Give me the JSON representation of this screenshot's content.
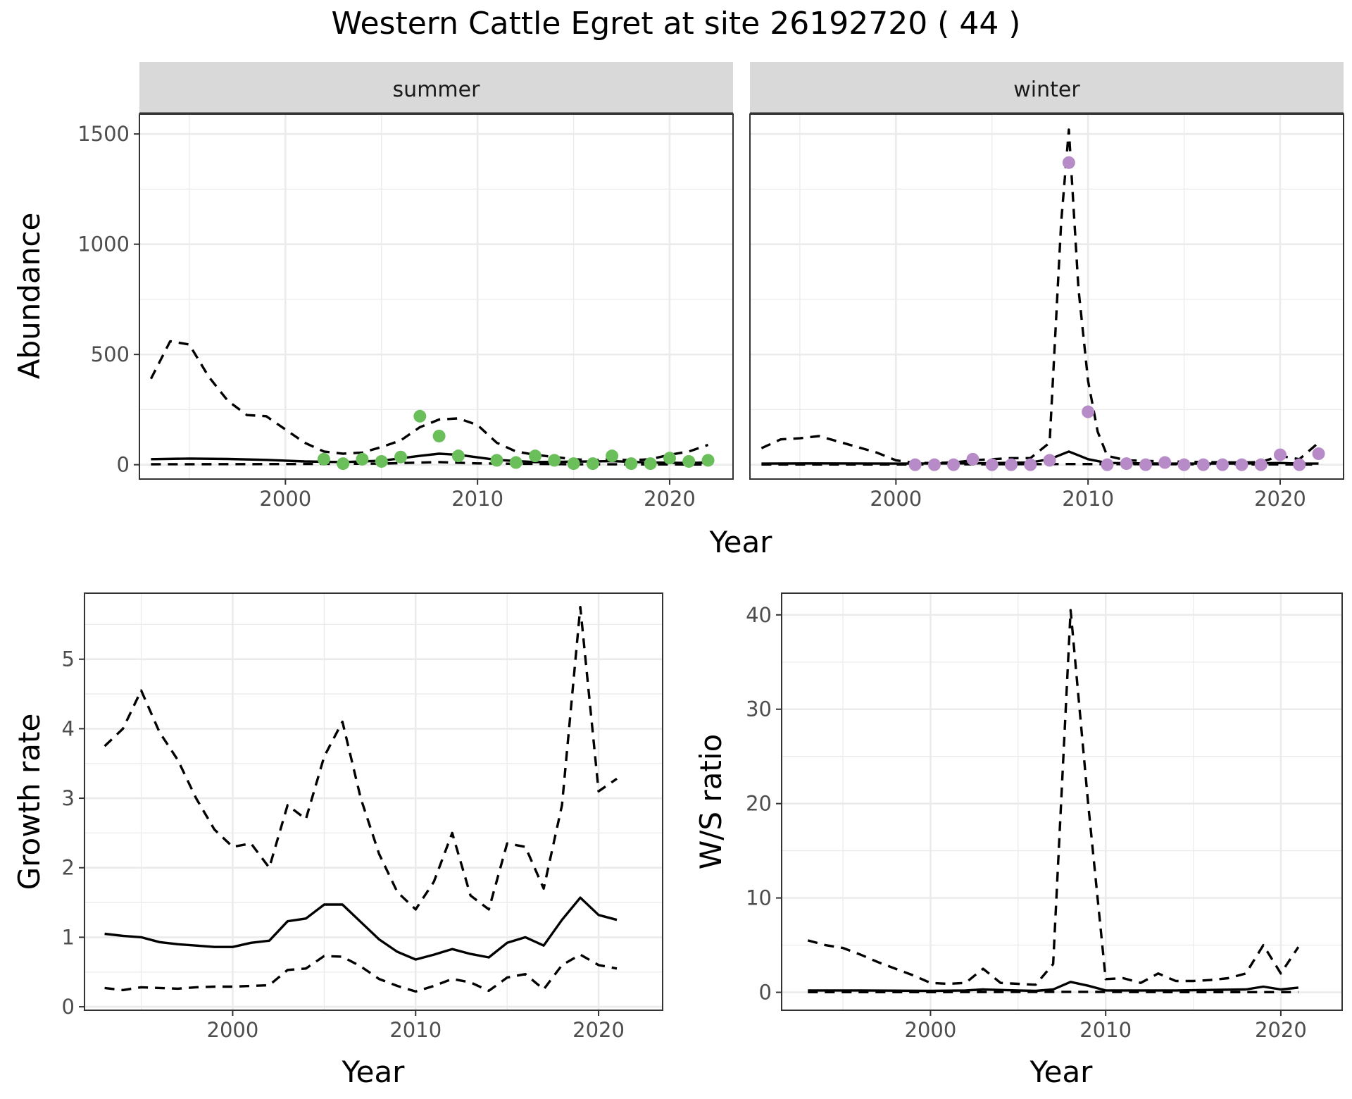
{
  "title": "Western Cattle Egret at site 26192720 ( 44 )",
  "colors": {
    "summer_points": "#6abf5b",
    "winter_points": "#b68bc8",
    "strip_bg": "#d9d9d9",
    "line": "#000000"
  },
  "chart_data": [
    {
      "id": "summer",
      "type": "line",
      "strip_label": "summer",
      "xlabel": "Year",
      "ylabel": "Abundance",
      "xlim": [
        1992.4,
        2023.3
      ],
      "ylim": [
        -65,
        1590
      ],
      "x_ticks": [
        2000,
        2010,
        2020
      ],
      "y_ticks": [
        0,
        500,
        1000,
        1500
      ],
      "series": [
        {
          "style": "solid",
          "x": [
            1993,
            1995,
            1997,
            1999,
            2001,
            2003,
            2005,
            2007,
            2008,
            2009,
            2011,
            2013,
            2015,
            2017,
            2019,
            2021,
            2022
          ],
          "y": [
            25,
            28,
            26,
            22,
            15,
            12,
            18,
            40,
            50,
            45,
            22,
            12,
            14,
            16,
            10,
            8,
            10
          ]
        },
        {
          "style": "dashed",
          "x": [
            1993,
            1994,
            1995,
            1996,
            1997,
            1998,
            1999,
            2000,
            2001,
            2002,
            2003,
            2004,
            2005,
            2006,
            2007,
            2008,
            2009,
            2010,
            2011,
            2012,
            2013,
            2014,
            2015,
            2016,
            2017,
            2018,
            2019,
            2020,
            2021,
            2022
          ],
          "y": [
            390,
            560,
            545,
            400,
            290,
            225,
            220,
            160,
            100,
            60,
            50,
            55,
            80,
            110,
            170,
            205,
            210,
            180,
            100,
            60,
            45,
            35,
            25,
            20,
            25,
            20,
            25,
            45,
            60,
            90
          ]
        },
        {
          "style": "dashed",
          "x": [
            1993,
            2000,
            2005,
            2008,
            2010,
            2015,
            2022
          ],
          "y": [
            2,
            3,
            5,
            12,
            6,
            2,
            1
          ]
        }
      ],
      "points": {
        "x": [
          2002,
          2003,
          2004,
          2005,
          2006,
          2007,
          2008,
          2009,
          2011,
          2012,
          2013,
          2014,
          2015,
          2016,
          2017,
          2018,
          2019,
          2020,
          2021,
          2022
        ],
        "y": [
          25,
          5,
          25,
          15,
          35,
          220,
          130,
          40,
          20,
          10,
          40,
          20,
          5,
          5,
          40,
          5,
          5,
          30,
          15,
          20
        ]
      }
    },
    {
      "id": "winter",
      "type": "line",
      "strip_label": "winter",
      "xlabel": "Year",
      "ylabel": "",
      "xlim": [
        1992.4,
        2023.3
      ],
      "ylim": [
        -65,
        1590
      ],
      "x_ticks": [
        2000,
        2010,
        2020
      ],
      "y_ticks": [
        0,
        500,
        1000,
        1500
      ],
      "series": [
        {
          "style": "solid",
          "x": [
            1993,
            1996,
            2000,
            2004,
            2007,
            2008,
            2009,
            2010,
            2011,
            2014,
            2018,
            2020,
            2021,
            2022
          ],
          "y": [
            5,
            6,
            5,
            6,
            10,
            25,
            60,
            25,
            8,
            5,
            5,
            8,
            5,
            5
          ]
        },
        {
          "style": "dashed",
          "x": [
            1993,
            1994,
            1995,
            1996,
            1997,
            1998,
            1999,
            2000,
            2001,
            2002,
            2003,
            2004,
            2005,
            2006,
            2007,
            2008,
            2008.6,
            2009,
            2009.5,
            2010,
            2010.5,
            2011,
            2012,
            2014,
            2016,
            2018,
            2019,
            2020,
            2021,
            2022
          ],
          "y": [
            75,
            115,
            120,
            130,
            105,
            80,
            55,
            20,
            8,
            8,
            10,
            20,
            25,
            30,
            30,
            100,
            1100,
            1520,
            800,
            380,
            150,
            40,
            20,
            15,
            12,
            10,
            12,
            40,
            25,
            100
          ]
        },
        {
          "style": "dashed",
          "x": [
            1993,
            2000,
            2009,
            2022
          ],
          "y": [
            1,
            1,
            3,
            1
          ]
        }
      ],
      "points": {
        "x": [
          2001,
          2002,
          2003,
          2004,
          2005,
          2006,
          2007,
          2008,
          2009,
          2010,
          2011,
          2012,
          2013,
          2014,
          2015,
          2016,
          2017,
          2018,
          2019,
          2020,
          2021,
          2022
        ],
        "y": [
          0,
          0,
          0,
          25,
          0,
          0,
          0,
          20,
          1370,
          240,
          0,
          5,
          0,
          10,
          0,
          0,
          0,
          0,
          0,
          45,
          0,
          50
        ]
      }
    },
    {
      "id": "growth",
      "type": "line",
      "xlabel": "Year",
      "ylabel": "Growth rate",
      "xlim": [
        1991.9,
        2023.5
      ],
      "ylim": [
        -0.05,
        5.95
      ],
      "x_ticks": [
        2000,
        2010,
        2020
      ],
      "y_ticks": [
        0,
        1,
        2,
        3,
        4,
        5
      ],
      "series": [
        {
          "style": "solid",
          "x": [
            1993,
            1994,
            1995,
            1996,
            1997,
            1998,
            1999,
            2000,
            2001,
            2002,
            2003,
            2004,
            2005,
            2006,
            2007,
            2008,
            2009,
            2010,
            2011,
            2012,
            2013,
            2014,
            2015,
            2016,
            2017,
            2018,
            2019,
            2020,
            2021
          ],
          "y": [
            1.05,
            1.02,
            1.0,
            0.93,
            0.9,
            0.88,
            0.86,
            0.86,
            0.92,
            0.95,
            1.23,
            1.27,
            1.47,
            1.47,
            1.22,
            0.97,
            0.79,
            0.68,
            0.75,
            0.83,
            0.76,
            0.71,
            0.92,
            1.0,
            0.88,
            1.25,
            1.57,
            1.32,
            1.25
          ]
        },
        {
          "style": "dashed",
          "x": [
            1993,
            1994,
            1995,
            1996,
            1997,
            1998,
            1999,
            2000,
            2001,
            2002,
            2003,
            2004,
            2005,
            2006,
            2007,
            2008,
            2009,
            2010,
            2011,
            2012,
            2013,
            2014,
            2015,
            2016,
            2017,
            2018,
            2019,
            2020,
            2021
          ],
          "y": [
            3.75,
            4.0,
            4.55,
            3.95,
            3.55,
            3.0,
            2.55,
            2.3,
            2.35,
            2.0,
            2.9,
            2.7,
            3.6,
            4.1,
            3.0,
            2.2,
            1.65,
            1.4,
            1.8,
            2.5,
            1.6,
            1.4,
            2.35,
            2.3,
            1.7,
            2.9,
            5.75,
            3.1,
            3.28
          ]
        },
        {
          "style": "dashed",
          "x": [
            1993,
            1994,
            1995,
            1996,
            1997,
            1998,
            1999,
            2000,
            2001,
            2002,
            2003,
            2004,
            2005,
            2006,
            2007,
            2008,
            2009,
            2010,
            2011,
            2012,
            2013,
            2014,
            2015,
            2016,
            2017,
            2018,
            2019,
            2020,
            2021
          ],
          "y": [
            0.27,
            0.24,
            0.28,
            0.27,
            0.26,
            0.28,
            0.29,
            0.29,
            0.3,
            0.31,
            0.53,
            0.55,
            0.73,
            0.72,
            0.58,
            0.4,
            0.3,
            0.22,
            0.3,
            0.4,
            0.35,
            0.23,
            0.42,
            0.47,
            0.25,
            0.6,
            0.75,
            0.6,
            0.55
          ]
        }
      ]
    },
    {
      "id": "ratio",
      "type": "line",
      "xlabel": "Year",
      "ylabel": "W/S ratio",
      "xlim": [
        1991.5,
        2023.5
      ],
      "ylim": [
        -1.9,
        42.3
      ],
      "x_ticks": [
        2000,
        2010,
        2020
      ],
      "y_ticks": [
        0,
        10,
        20,
        30,
        40
      ],
      "series": [
        {
          "style": "solid",
          "x": [
            1993,
            1996,
            2000,
            2002,
            2003,
            2005,
            2006,
            2007,
            2008,
            2009,
            2010,
            2012,
            2014,
            2016,
            2018,
            2019,
            2020,
            2021
          ],
          "y": [
            0.2,
            0.2,
            0.15,
            0.2,
            0.3,
            0.2,
            0.15,
            0.3,
            1.1,
            0.7,
            0.2,
            0.2,
            0.2,
            0.25,
            0.3,
            0.6,
            0.3,
            0.5
          ]
        },
        {
          "style": "dashed",
          "x": [
            1993,
            1994,
            1995,
            1996,
            1997,
            1998,
            1999,
            2000,
            2001,
            2002,
            2003,
            2004,
            2005,
            2006,
            2007,
            2008,
            2009,
            2010,
            2011,
            2012,
            2013,
            2014,
            2015,
            2016,
            2017,
            2018,
            2019,
            2020,
            2021
          ],
          "y": [
            5.5,
            5.0,
            4.7,
            4.0,
            3.2,
            2.5,
            1.8,
            1.0,
            0.9,
            1.0,
            2.5,
            1.0,
            0.9,
            0.8,
            3.0,
            40.5,
            20.0,
            1.4,
            1.5,
            1.0,
            2.0,
            1.2,
            1.2,
            1.3,
            1.5,
            2.0,
            5.0,
            2.0,
            4.8
          ]
        },
        {
          "style": "dashed",
          "x": [
            1993,
            2000,
            2008,
            2014,
            2021
          ],
          "y": [
            0.02,
            0.02,
            0.05,
            0.02,
            0.02
          ]
        }
      ]
    }
  ]
}
